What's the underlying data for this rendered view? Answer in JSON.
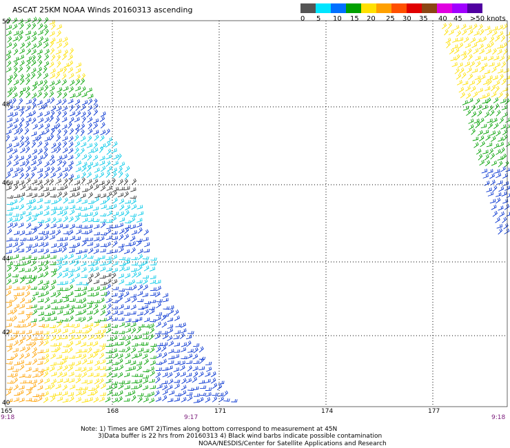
{
  "title": "ASCAT 25KM NOAA Winds 20160313 ascending",
  "legend": {
    "colors": [
      "#555555",
      "#00e5ff",
      "#0070ff",
      "#00a000",
      "#ffe000",
      "#ffa000",
      "#ff5000",
      "#e00000",
      "#8b4513",
      "#e000e0",
      "#a000ff",
      "#5000a0"
    ],
    "ticks": [
      "0",
      "5",
      "10",
      "15",
      "20",
      "25",
      "30",
      "35",
      "40",
      "45",
      ">50 knots"
    ]
  },
  "latitudes": [
    "50",
    "48",
    "46",
    "44",
    "42",
    "40"
  ],
  "longitudes": [
    "165",
    "168",
    "171",
    "174",
    "177"
  ],
  "times": [
    "9:18",
    "9:17",
    "9:18"
  ],
  "notes": [
    "Note: 1) Times are GMT 2)Times along bottom correspond to measurement at 45N",
    "3)Data buffer is 22 hrs from 20160313 4) Black wind barbs indicate possible contamination",
    "NOAA/NESDIS/Center for Satellite Applications and Research"
  ]
}
